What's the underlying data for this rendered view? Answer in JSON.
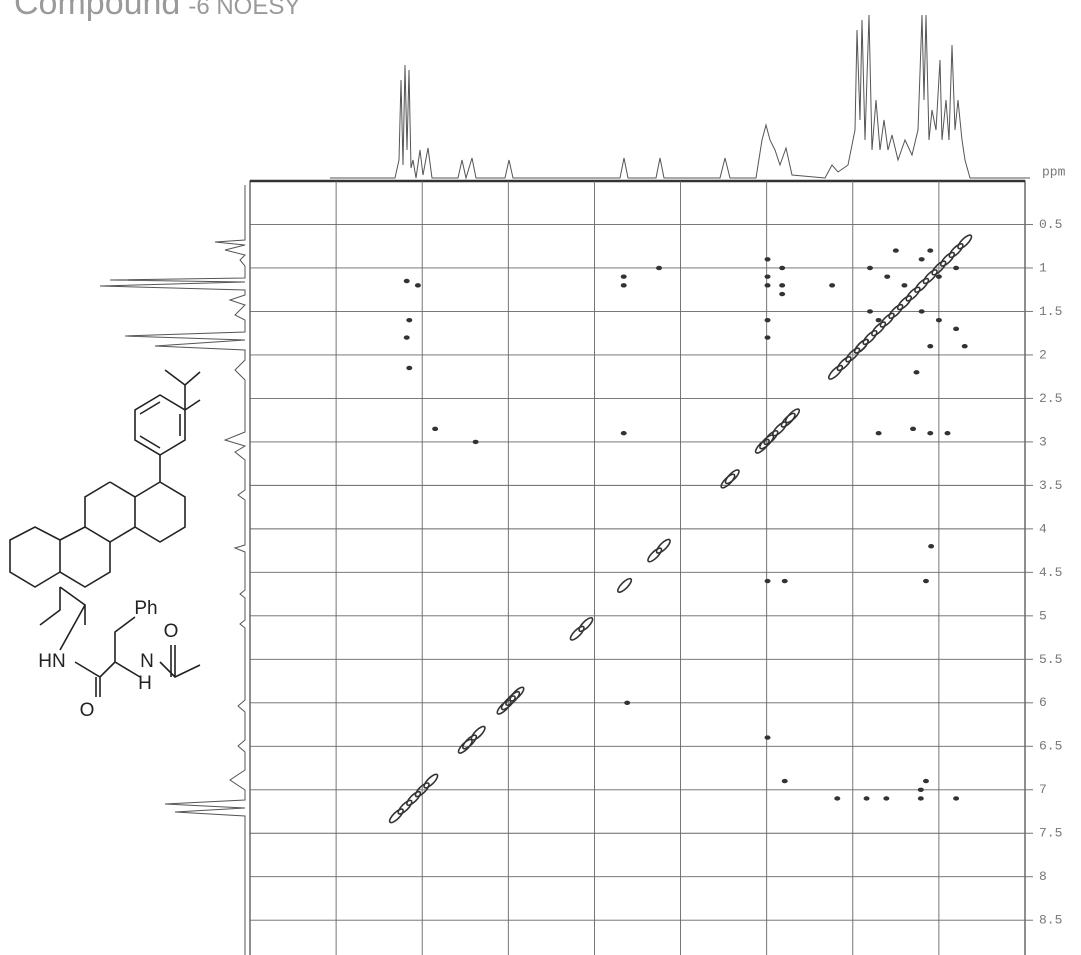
{
  "chart_data": {
    "type": "noesy",
    "title": [
      "Compound",
      "-6 NOESY"
    ],
    "ylabel": "ppm",
    "xlim": [
      9,
      0
    ],
    "xticks": [
      8,
      7,
      6,
      5,
      4,
      3,
      2,
      1
    ],
    "ylim": [
      0,
      8.9
    ],
    "yticks": [
      0.5,
      1.0,
      1.5,
      2.0,
      2.5,
      3.0,
      3.5,
      4.0,
      4.5,
      5.0,
      5.5,
      6.0,
      6.5,
      7.0,
      7.5,
      8.0,
      8.5
    ],
    "grid": true,
    "color": "#333333",
    "peaks": {
      "x": [
        7.3,
        7.2,
        7.1,
        7.0,
        6.9,
        6.5,
        6.45,
        6.35,
        6.05,
        6.0,
        5.95,
        5.9,
        5.2,
        5.1,
        4.65,
        4.3,
        4.2,
        3.45,
        3.4,
        3.05,
        3.0,
        2.95,
        2.85,
        2.75,
        2.7,
        2.2,
        2.1,
        2.0,
        1.9,
        1.8,
        1.7,
        1.6,
        1.5,
        1.4,
        1.3,
        1.2,
        1.1,
        1.0,
        0.9,
        0.8,
        0.7,
        7.18,
        7.05,
        7.15,
        7.18,
        7.15,
        6.85,
        6.38,
        4.66,
        4.66,
        4.66,
        4.62,
        4.25,
        2.99,
        2.99,
        2.99,
        2.99,
        2.99,
        2.82,
        2.82,
        2.82,
        2.24,
        2.99,
        2.79,
        2.99,
        2.79,
        1.26,
        1.09,
        1.15,
        1.15,
        1.21,
        1.21,
        2.18,
        1.84,
        1.61,
        0.8,
        1.7,
        1.3,
        1.1,
        0.9,
        1.8,
        1.6,
        1.4,
        1.8,
        1.7,
        1.2,
        1.0,
        0.8,
        1.1,
        1.9,
        0.7,
        1.5,
        1.1,
        0.8,
        1.2,
        1.0
      ],
      "y": [
        7.3,
        7.2,
        7.1,
        7.0,
        6.9,
        6.5,
        6.45,
        6.35,
        6.05,
        6.0,
        5.95,
        5.9,
        5.2,
        5.1,
        4.65,
        4.3,
        4.2,
        3.45,
        3.4,
        3.05,
        3.0,
        2.95,
        2.85,
        2.75,
        2.7,
        2.2,
        2.1,
        2.0,
        1.9,
        1.8,
        1.7,
        1.6,
        1.5,
        1.4,
        1.3,
        1.2,
        1.1,
        1.0,
        0.9,
        0.8,
        0.7,
        1.15,
        1.2,
        1.6,
        1.8,
        2.15,
        2.85,
        3.0,
        1.1,
        1.2,
        2.9,
        6.0,
        1.0,
        0.9,
        1.1,
        1.2,
        1.6,
        1.8,
        1.0,
        1.2,
        1.3,
        1.2,
        6.4,
        6.9,
        4.6,
        4.6,
        2.2,
        4.2,
        4.6,
        6.9,
        7.0,
        7.1,
        7.1,
        7.1,
        7.1,
        7.1,
        2.9,
        2.85,
        2.9,
        2.9,
        1.0,
        1.1,
        1.2,
        1.5,
        1.6,
        1.5,
        1.6,
        1.7,
        1.9,
        1.9,
        1.9,
        0.8,
        0.8,
        1.0,
        0.9,
        1.1
      ]
    }
  },
  "structure": {
    "labels": [
      "Ph",
      "O",
      "HN",
      "N",
      "H",
      "O"
    ]
  }
}
